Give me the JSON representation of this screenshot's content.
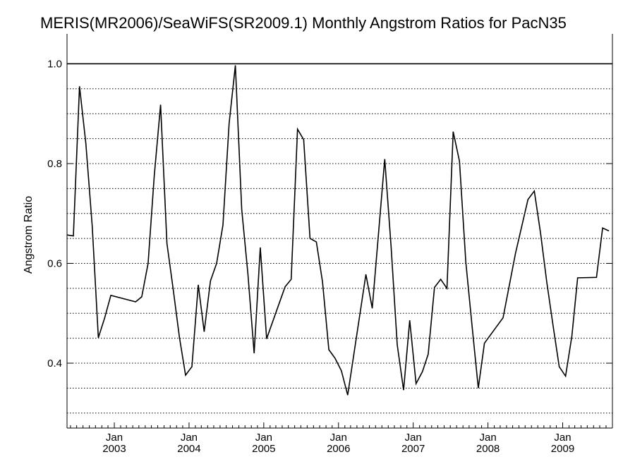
{
  "chart_data": {
    "type": "line",
    "title": "MERIS(MR2006)/SeaWiFS(SR2009.1) Monthly Angstrom Ratios for PacN35",
    "xlabel": "",
    "ylabel": "Angstrom Ratio",
    "ylim": [
      0.27,
      1.06
    ],
    "xlim": [
      "2002-05-15",
      "2009-09-01"
    ],
    "y_ticks": [
      0.4,
      0.6,
      0.8,
      1.0
    ],
    "y_tick_labels": [
      "0.4",
      "0.6",
      "0.8",
      "1.0"
    ],
    "y_gridlines": [
      0.3,
      0.35,
      0.4,
      0.45,
      0.5,
      0.55,
      0.6,
      0.65,
      0.7,
      0.75,
      0.8,
      0.85,
      0.9,
      0.95
    ],
    "x_ticks": [
      {
        "date": "2003-01-01",
        "month": "Jan",
        "year": "2003"
      },
      {
        "date": "2004-01-01",
        "month": "Jan",
        "year": "2004"
      },
      {
        "date": "2005-01-01",
        "month": "Jan",
        "year": "2005"
      },
      {
        "date": "2006-01-01",
        "month": "Jan",
        "year": "2006"
      },
      {
        "date": "2007-01-01",
        "month": "Jan",
        "year": "2007"
      },
      {
        "date": "2008-01-01",
        "month": "Jan",
        "year": "2008"
      },
      {
        "date": "2009-01-01",
        "month": "Jan",
        "year": "2009"
      }
    ],
    "reference_line": 1.0,
    "grid": "horizontal dotted",
    "series": [
      {
        "color": "#000000",
        "points": [
          [
            "2002-05-15",
            0.657
          ],
          [
            "2002-06-15",
            0.655
          ],
          [
            "2002-07-15",
            0.955
          ],
          [
            "2002-08-15",
            0.84
          ],
          [
            "2002-09-15",
            0.675
          ],
          [
            "2002-10-15",
            0.451
          ],
          [
            "2002-11-15",
            0.491
          ],
          [
            "2002-12-15",
            0.536
          ],
          [
            "2003-04-15",
            0.523
          ],
          [
            "2003-05-15",
            0.533
          ],
          [
            "2003-06-15",
            0.6
          ],
          [
            "2003-07-15",
            0.775
          ],
          [
            "2003-08-15",
            0.918
          ],
          [
            "2003-09-15",
            0.64
          ],
          [
            "2003-10-15",
            0.55
          ],
          [
            "2003-11-15",
            0.452
          ],
          [
            "2003-12-15",
            0.376
          ],
          [
            "2004-01-15",
            0.393
          ],
          [
            "2004-02-15",
            0.557
          ],
          [
            "2004-03-15",
            0.463
          ],
          [
            "2004-04-15",
            0.565
          ],
          [
            "2004-05-15",
            0.6
          ],
          [
            "2004-06-15",
            0.677
          ],
          [
            "2004-07-15",
            0.88
          ],
          [
            "2004-08-15",
            0.997
          ],
          [
            "2004-09-15",
            0.708
          ],
          [
            "2004-10-15",
            0.58
          ],
          [
            "2004-11-15",
            0.42
          ],
          [
            "2004-12-15",
            0.632
          ],
          [
            "2005-01-15",
            0.449
          ],
          [
            "2005-04-15",
            0.553
          ],
          [
            "2005-05-15",
            0.568
          ],
          [
            "2005-06-15",
            0.869
          ],
          [
            "2005-07-15",
            0.848
          ],
          [
            "2005-08-15",
            0.65
          ],
          [
            "2005-09-15",
            0.643
          ],
          [
            "2005-10-15",
            0.563
          ],
          [
            "2005-11-15",
            0.427
          ],
          [
            "2005-12-15",
            0.41
          ],
          [
            "2006-01-15",
            0.385
          ],
          [
            "2006-02-15",
            0.336
          ],
          [
            "2006-05-15",
            0.578
          ],
          [
            "2006-06-15",
            0.51
          ],
          [
            "2006-08-15",
            0.809
          ],
          [
            "2006-09-15",
            0.634
          ],
          [
            "2006-10-15",
            0.437
          ],
          [
            "2006-11-15",
            0.346
          ],
          [
            "2006-12-15",
            0.486
          ],
          [
            "2007-01-15",
            0.359
          ],
          [
            "2007-02-15",
            0.383
          ],
          [
            "2007-03-15",
            0.418
          ],
          [
            "2007-04-15",
            0.552
          ],
          [
            "2007-05-15",
            0.568
          ],
          [
            "2007-06-15",
            0.55
          ],
          [
            "2007-07-15",
            0.864
          ],
          [
            "2007-08-15",
            0.805
          ],
          [
            "2007-09-15",
            0.603
          ],
          [
            "2007-10-15",
            0.477
          ],
          [
            "2007-11-15",
            0.35
          ],
          [
            "2007-12-15",
            0.44
          ],
          [
            "2008-03-15",
            0.491
          ],
          [
            "2008-05-15",
            0.62
          ],
          [
            "2008-07-15",
            0.728
          ],
          [
            "2008-08-15",
            0.745
          ],
          [
            "2008-09-15",
            0.66
          ],
          [
            "2008-10-15",
            0.563
          ],
          [
            "2008-11-15",
            0.475
          ],
          [
            "2008-12-15",
            0.393
          ],
          [
            "2009-01-15",
            0.374
          ],
          [
            "2009-02-15",
            0.454
          ],
          [
            "2009-03-15",
            0.571
          ],
          [
            "2009-06-15",
            0.572
          ],
          [
            "2009-07-15",
            0.671
          ],
          [
            "2009-08-15",
            0.665
          ]
        ]
      }
    ]
  }
}
